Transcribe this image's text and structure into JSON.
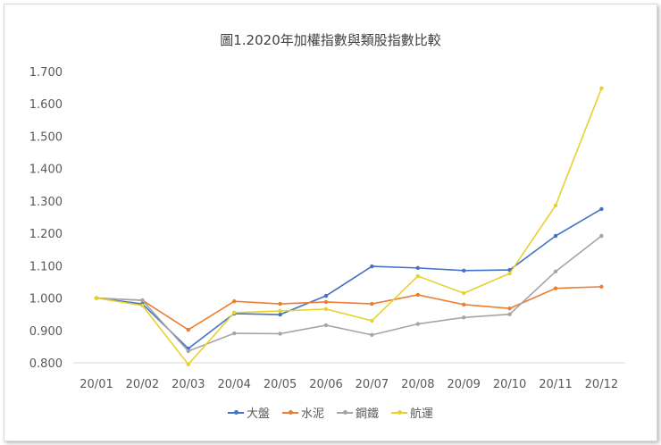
{
  "chart_data": {
    "type": "line",
    "title": "圖1.2020年加權指數與類股指數比較",
    "xlabel": "",
    "ylabel": "",
    "categories": [
      "20/01",
      "20/02",
      "20/03",
      "20/04",
      "20/05",
      "20/06",
      "20/07",
      "20/08",
      "20/09",
      "20/10",
      "20/11",
      "20/12"
    ],
    "ylim": [
      0.8,
      1.7
    ],
    "yticks": [
      "0.800",
      "0.900",
      "1.000",
      "1.100",
      "1.200",
      "1.300",
      "1.400",
      "1.500",
      "1.600",
      "1.700"
    ],
    "grid": false,
    "legend_position": "bottom",
    "series": [
      {
        "name": "大盤",
        "color": "#4472C4",
        "values": [
          1.0,
          0.982,
          0.844,
          0.952,
          0.949,
          1.007,
          1.098,
          1.093,
          1.085,
          1.087,
          1.192,
          1.275
        ]
      },
      {
        "name": "水泥",
        "color": "#ED7D31",
        "values": [
          1.0,
          0.993,
          0.902,
          0.99,
          0.982,
          0.988,
          0.982,
          1.01,
          0.98,
          0.968,
          1.03,
          1.035
        ]
      },
      {
        "name": "鋼鐵",
        "color": "#A5A5A5",
        "values": [
          1.0,
          0.993,
          0.836,
          0.891,
          0.89,
          0.916,
          0.886,
          0.92,
          0.94,
          0.95,
          1.082,
          1.192
        ]
      },
      {
        "name": "航運",
        "color": "#E6D22E",
        "values": [
          1.0,
          0.977,
          0.795,
          0.955,
          0.96,
          0.966,
          0.93,
          1.068,
          1.015,
          1.076,
          1.286,
          1.648
        ]
      }
    ]
  }
}
